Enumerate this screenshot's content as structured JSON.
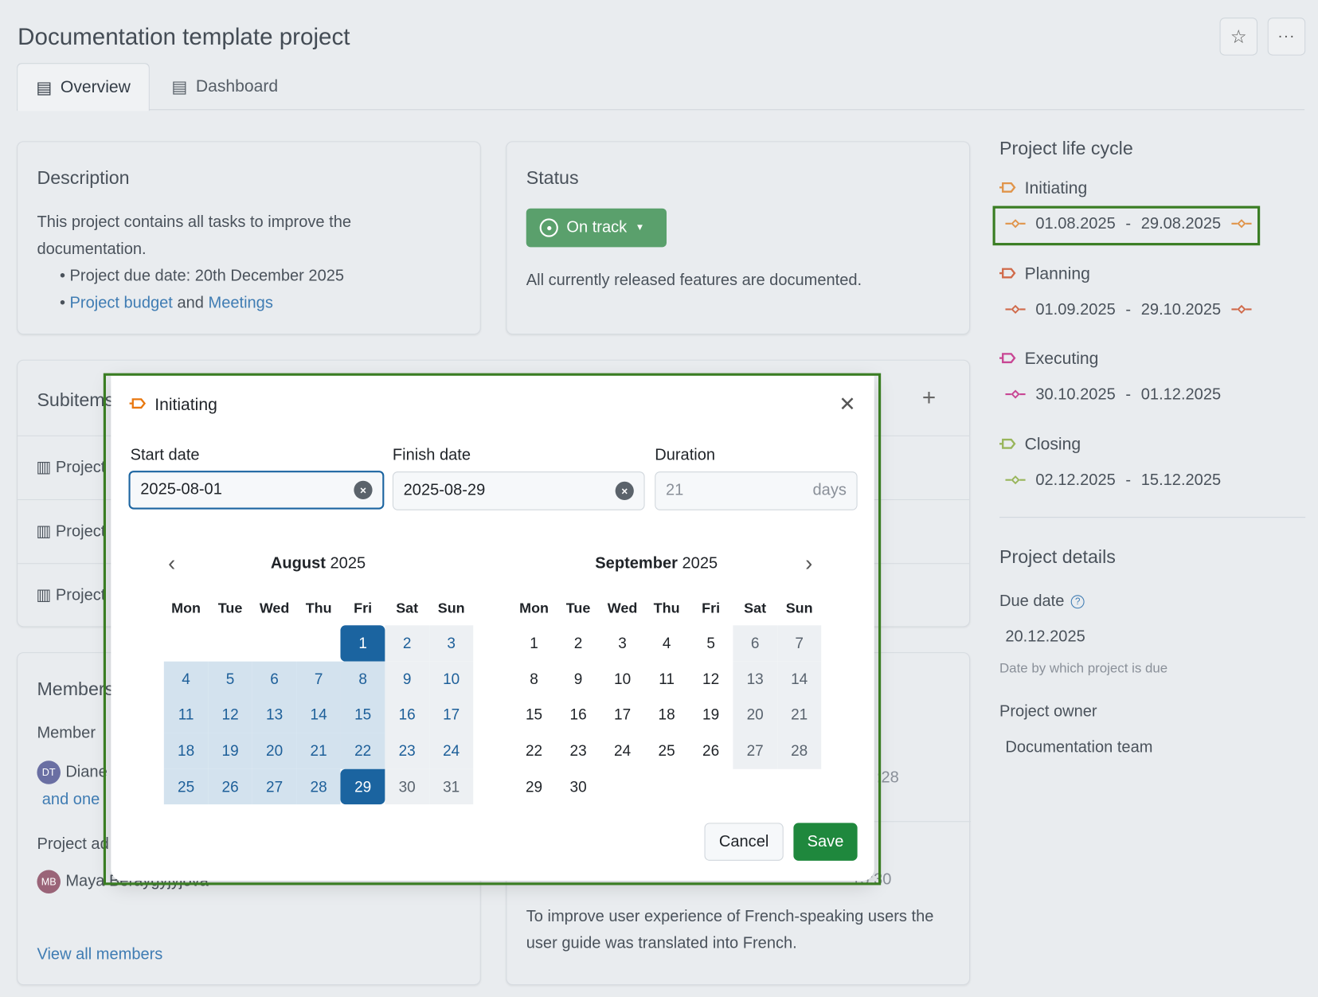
{
  "page": {
    "title": "Documentation template project",
    "star_icon": "star-icon",
    "more_icon": "more-horizontal-icon"
  },
  "tabs": [
    {
      "label": "Overview",
      "icon": "overview-icon"
    },
    {
      "label": "Dashboard",
      "icon": "dashboard-icon"
    }
  ],
  "description": {
    "title": "Description",
    "text": "This project contains all tasks to improve the documentation.",
    "bullet1": "Project due date: 20th December 2025",
    "bullet2_link1": "Project budget",
    "bullet2_and": " and ",
    "bullet2_link2": "Meetings"
  },
  "status": {
    "title": "Status",
    "value": "On track",
    "color": "#5aa06c",
    "text": "All currently released features are documented."
  },
  "subitems": {
    "title": "Subitems",
    "rows": [
      "Project",
      "Project",
      "Project"
    ]
  },
  "members": {
    "title": "Members",
    "member_label": "Member",
    "member_initials": "DT",
    "member_name": "Diane",
    "more": "and one",
    "admin_label": "Project ad",
    "admin_initials": "MB",
    "admin_name": "Maya Beraygyjyjova",
    "view_all": "View all members"
  },
  "news": {
    "fragment1": ":28",
    "fragment2": "15:30",
    "text": "To improve user experience of French-speaking users the user guide was translated into French."
  },
  "lifecycle": {
    "title": "Project life cycle",
    "phases": [
      {
        "name": "Initiating",
        "start": "01.08.2025",
        "end": "29.08.2025",
        "color": "#e0944a",
        "has_end_icon": true
      },
      {
        "name": "Planning",
        "start": "01.09.2025",
        "end": "29.10.2025",
        "color": "#d06a4a",
        "has_end_icon": true
      },
      {
        "name": "Executing",
        "start": "30.10.2025",
        "end": "01.12.2025",
        "color": "#c84593",
        "has_end_icon": false
      },
      {
        "name": "Closing",
        "start": "02.12.2025",
        "end": "15.12.2025",
        "color": "#98b55a",
        "has_end_icon": false
      }
    ]
  },
  "details": {
    "title": "Project details",
    "due_label": "Due date",
    "due_value": "20.12.2025",
    "due_hint": "Date by which project is due",
    "owner_label": "Project owner",
    "owner_value": "Documentation team"
  },
  "dialog": {
    "title": "Initiating",
    "phase_color": "#e8770e",
    "start_label": "Start date",
    "start_value": "2025-08-01",
    "finish_label": "Finish date",
    "finish_value": "2025-08-29",
    "duration_label": "Duration",
    "duration_value": "21",
    "duration_unit": "days",
    "cancel": "Cancel",
    "save": "Save",
    "save_color": "#1f883d",
    "weekdays": [
      "Mon",
      "Tue",
      "Wed",
      "Thu",
      "Fri",
      "Sat",
      "Sun"
    ],
    "months": [
      {
        "name": "August",
        "year": "2025",
        "first_weekday": 5,
        "days": 31
      },
      {
        "name": "September",
        "year": "2025",
        "first_weekday": 1,
        "days": 30
      }
    ],
    "range": {
      "month": 0,
      "start": 1,
      "end": 29
    },
    "selected_color": "#1b64a0"
  }
}
